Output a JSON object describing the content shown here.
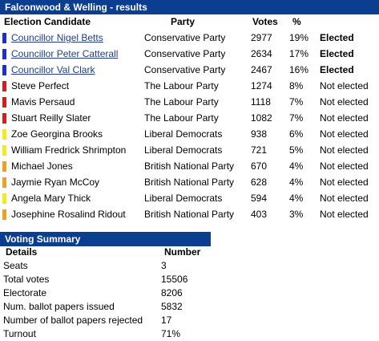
{
  "results_bar": {
    "title": "Falconwood & Welling - results"
  },
  "results_header": {
    "candidate": "Election Candidate",
    "party": "Party",
    "votes": "Votes",
    "percent": "%"
  },
  "candidates": [
    {
      "name": "Councillor Nigel Betts",
      "party": "Conservative Party",
      "votes": "2977",
      "percent": "19%",
      "status": "Elected",
      "color": "#1a2fd8",
      "link": true
    },
    {
      "name": "Councillor Peter Catterall",
      "party": "Conservative Party",
      "votes": "2634",
      "percent": "17%",
      "status": "Elected",
      "color": "#1a2fd8",
      "link": true
    },
    {
      "name": "Councillor Val Clark",
      "party": "Conservative Party",
      "votes": "2467",
      "percent": "16%",
      "status": "Elected",
      "color": "#1a2fd8",
      "link": true
    },
    {
      "name": "Steve Perfect",
      "party": "The Labour Party",
      "votes": "1274",
      "percent": "8%",
      "status": "Not elected",
      "color": "#e01818",
      "link": false
    },
    {
      "name": "Mavis Persaud",
      "party": "The Labour Party",
      "votes": "1118",
      "percent": "7%",
      "status": "Not elected",
      "color": "#e01818",
      "link": false
    },
    {
      "name": "Stuart Reilly Slater",
      "party": "The Labour Party",
      "votes": "1082",
      "percent": "7%",
      "status": "Not elected",
      "color": "#e01818",
      "link": false
    },
    {
      "name": "Zoe Georgina Brooks",
      "party": "Liberal Democrats",
      "votes": "938",
      "percent": "6%",
      "status": "Not elected",
      "color": "#f5ea1a",
      "link": false
    },
    {
      "name": "William Fredrick Shrimpton",
      "party": "Liberal Democrats",
      "votes": "721",
      "percent": "5%",
      "status": "Not elected",
      "color": "#f5ea1a",
      "link": false
    },
    {
      "name": "Michael Jones",
      "party": "British National Party",
      "votes": "670",
      "percent": "4%",
      "status": "Not elected",
      "color": "#f0a020",
      "link": false
    },
    {
      "name": "Jaymie Ryan McCoy",
      "party": "British National Party",
      "votes": "628",
      "percent": "4%",
      "status": "Not elected",
      "color": "#f0a020",
      "link": false
    },
    {
      "name": "Angela Mary Thick",
      "party": "Liberal Democrats",
      "votes": "594",
      "percent": "4%",
      "status": "Not elected",
      "color": "#f5ea1a",
      "link": false
    },
    {
      "name": "Josephine Rosalind Ridout",
      "party": "British National Party",
      "votes": "403",
      "percent": "3%",
      "status": "Not elected",
      "color": "#f0a020",
      "link": false
    }
  ],
  "summary_bar": {
    "title": "Voting Summary"
  },
  "summary_header": {
    "details": "Details",
    "number": "Number"
  },
  "summary": [
    {
      "label": "Seats",
      "value": "3"
    },
    {
      "label": "Total votes",
      "value": "15506"
    },
    {
      "label": "Electorate",
      "value": "8206"
    },
    {
      "label": "Num. ballot papers issued",
      "value": "5832"
    },
    {
      "label": "Number of ballot papers rejected",
      "value": "17"
    },
    {
      "label": "Turnout",
      "value": "71%"
    }
  ]
}
